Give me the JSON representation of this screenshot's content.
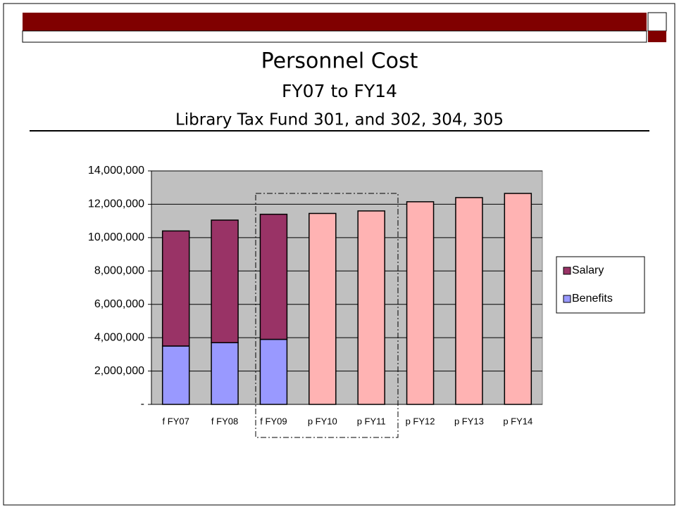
{
  "chart_data": {
    "type": "stacked_bar",
    "title": "Personnel Cost",
    "subtitle": "FY07 to FY14",
    "subtitle2": "Library Tax Fund 301, and 302, 304, 305",
    "categories": [
      "f FY07",
      "f FY08",
      "f FY09",
      "p FY10",
      "p FY11",
      "p FY12",
      "p FY13",
      "p FY14"
    ],
    "series": [
      {
        "name": "Benefits",
        "color": "#9999ff",
        "values": [
          3500000,
          3700000,
          3900000,
          null,
          null,
          null,
          null,
          null
        ]
      },
      {
        "name": "Salary",
        "color": "#993366",
        "values": [
          6900000,
          7350000,
          7500000,
          null,
          null,
          null,
          null,
          null
        ]
      },
      {
        "color": "#ffb3b3",
        "values": [
          null,
          null,
          null,
          11450000,
          11600000,
          12150000,
          12400000,
          12650000
        ]
      }
    ],
    "ylim": [
      0,
      14000000
    ],
    "yticks": [
      {
        "value": 0,
        "label": "-"
      },
      {
        "value": 2000000,
        "label": "2,000,000"
      },
      {
        "value": 4000000,
        "label": "4,000,000"
      },
      {
        "value": 6000000,
        "label": "6,000,000"
      },
      {
        "value": 8000000,
        "label": "8,000,000"
      },
      {
        "value": 10000000,
        "label": "10,000,000"
      },
      {
        "value": 12000000,
        "label": "12,000,000"
      },
      {
        "value": 14000000,
        "label": "14,000,000"
      }
    ],
    "grid": true
  }
}
